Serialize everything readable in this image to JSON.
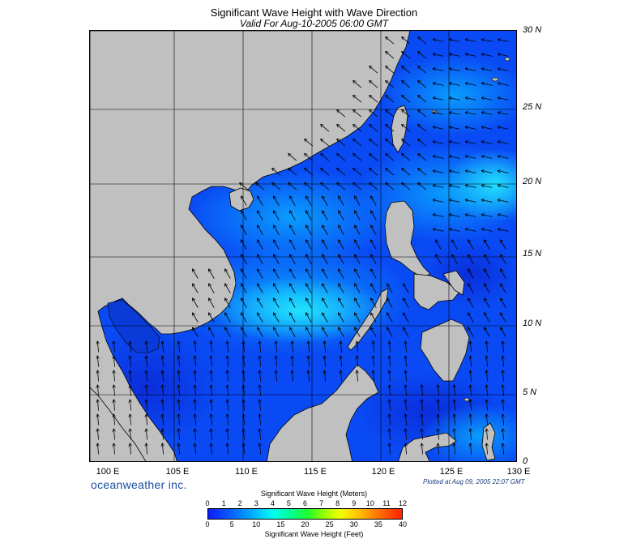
{
  "header": {
    "title": "Significant Wave Height with Wave Direction",
    "subtitle": "Valid For Aug-10-2005 06:00 GMT"
  },
  "axes": {
    "lat_labels": [
      "30 N",
      "25 N",
      "20 N",
      "15 N",
      "10 N",
      "5 N",
      "0"
    ],
    "lon_labels": [
      "100 E",
      "105 E",
      "110 E",
      "115 E",
      "120 E",
      "125 E",
      "130 E"
    ]
  },
  "footer": {
    "brand": "oceanweather inc.",
    "plotted": "Plotted at Aug 09, 2005 22:07 GMT"
  },
  "colorbar": {
    "title_meters": "Significant Wave Height (Meters)",
    "title_feet": "Significant Wave Height (Feet)",
    "meters_ticks": [
      "0",
      "1",
      "2",
      "3",
      "4",
      "5",
      "6",
      "7",
      "8",
      "9",
      "10",
      "11",
      "12"
    ],
    "feet_ticks": [
      "0",
      "5",
      "10",
      "15",
      "20",
      "25",
      "30",
      "35",
      "40"
    ]
  },
  "colors": {
    "land": "#c0c0c0",
    "sea_base": "#0a3cf0",
    "sea_high": "#00c8ff",
    "grid": "#000000"
  }
}
